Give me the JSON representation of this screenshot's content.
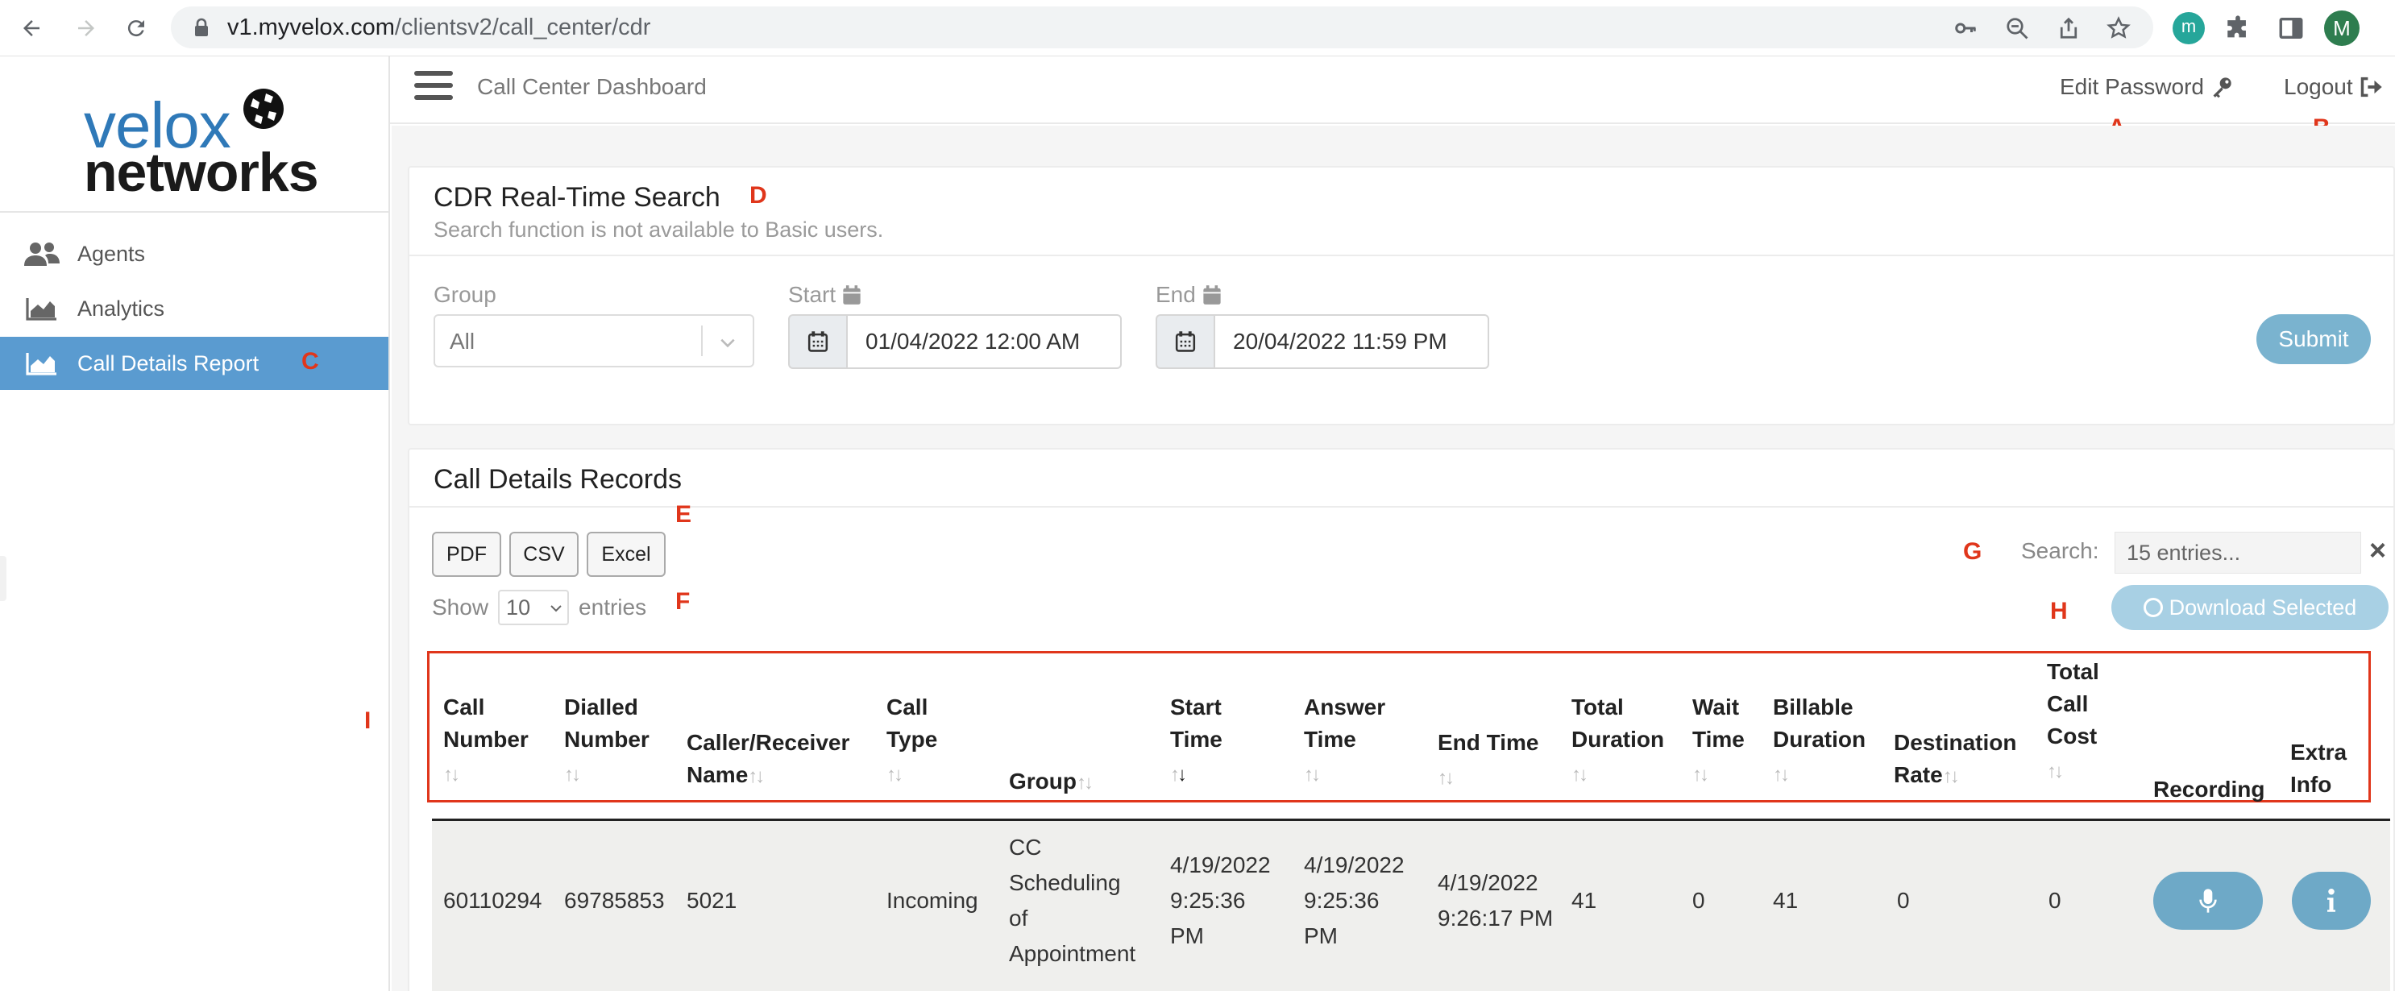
{
  "browser": {
    "url_host": "v1.myvelox.com",
    "url_path": "/clientsv2/call_center/cdr",
    "extension_badge": "m",
    "profile_initial": "M"
  },
  "sidebar": {
    "logo_top": "velox",
    "logo_bottom": "networks",
    "items": [
      {
        "label": "Agents",
        "icon": "users-icon",
        "active": false
      },
      {
        "label": "Analytics",
        "icon": "area-chart-icon",
        "active": false
      },
      {
        "label": "Call Details Report",
        "icon": "area-chart-icon",
        "active": true
      }
    ]
  },
  "topbar": {
    "title": "Call Center Dashboard",
    "edit_password": "Edit Password",
    "logout": "Logout"
  },
  "annotations": {
    "a": "A",
    "b": "B",
    "c": "C",
    "d": "D",
    "e": "E",
    "f": "F",
    "g": "G",
    "h": "H",
    "i": "I"
  },
  "search_card": {
    "title": "CDR Real-Time Search",
    "subtitle": "Search function is not available to Basic users.",
    "group_label": "Group",
    "group_value": "All",
    "start_label": "Start",
    "start_value": "01/04/2022 12:00 AM",
    "end_label": "End",
    "end_value": "20/04/2022 11:59 PM",
    "submit": "Submit"
  },
  "records_card": {
    "title": "Call Details Records",
    "export_buttons": [
      "PDF",
      "CSV",
      "Excel"
    ],
    "show_label": "Show",
    "page_length": "10",
    "entries_label": "entries",
    "search_label": "Search:",
    "search_placeholder": "15 entries...",
    "download_selected": "Download Selected",
    "columns": [
      [
        "Call",
        "Number"
      ],
      [
        "Dialled",
        "Number"
      ],
      [
        "Caller/Receiver",
        "Name"
      ],
      [
        "Call",
        "Type"
      ],
      [
        "Group"
      ],
      [
        "Start",
        "Time"
      ],
      [
        "Answer",
        "Time"
      ],
      [
        "End Time"
      ],
      [
        "Total",
        "Duration"
      ],
      [
        "Wait",
        "Time"
      ],
      [
        "Billable",
        "Duration"
      ],
      [
        "Destination",
        "Rate"
      ],
      [
        "Total",
        "Call",
        "Cost"
      ],
      [
        "Recording"
      ],
      [
        "Extra",
        "Info"
      ]
    ],
    "rows": [
      {
        "call_number": "60110294",
        "dialled_number": "69785853",
        "caller_receiver": "5021",
        "call_type": "Incoming",
        "group": [
          "CC",
          "Scheduling",
          "of",
          "Appointment"
        ],
        "start_time": [
          "4/19/2022",
          "9:25:36",
          "PM"
        ],
        "answer_time": [
          "4/19/2022",
          "9:25:36",
          "PM"
        ],
        "end_time": [
          "4/19/2022",
          "9:26:17 PM"
        ],
        "total_duration": "41",
        "wait_time": "0",
        "billable_duration": "41",
        "destination_rate": "0",
        "total_call_cost": "0"
      }
    ]
  }
}
